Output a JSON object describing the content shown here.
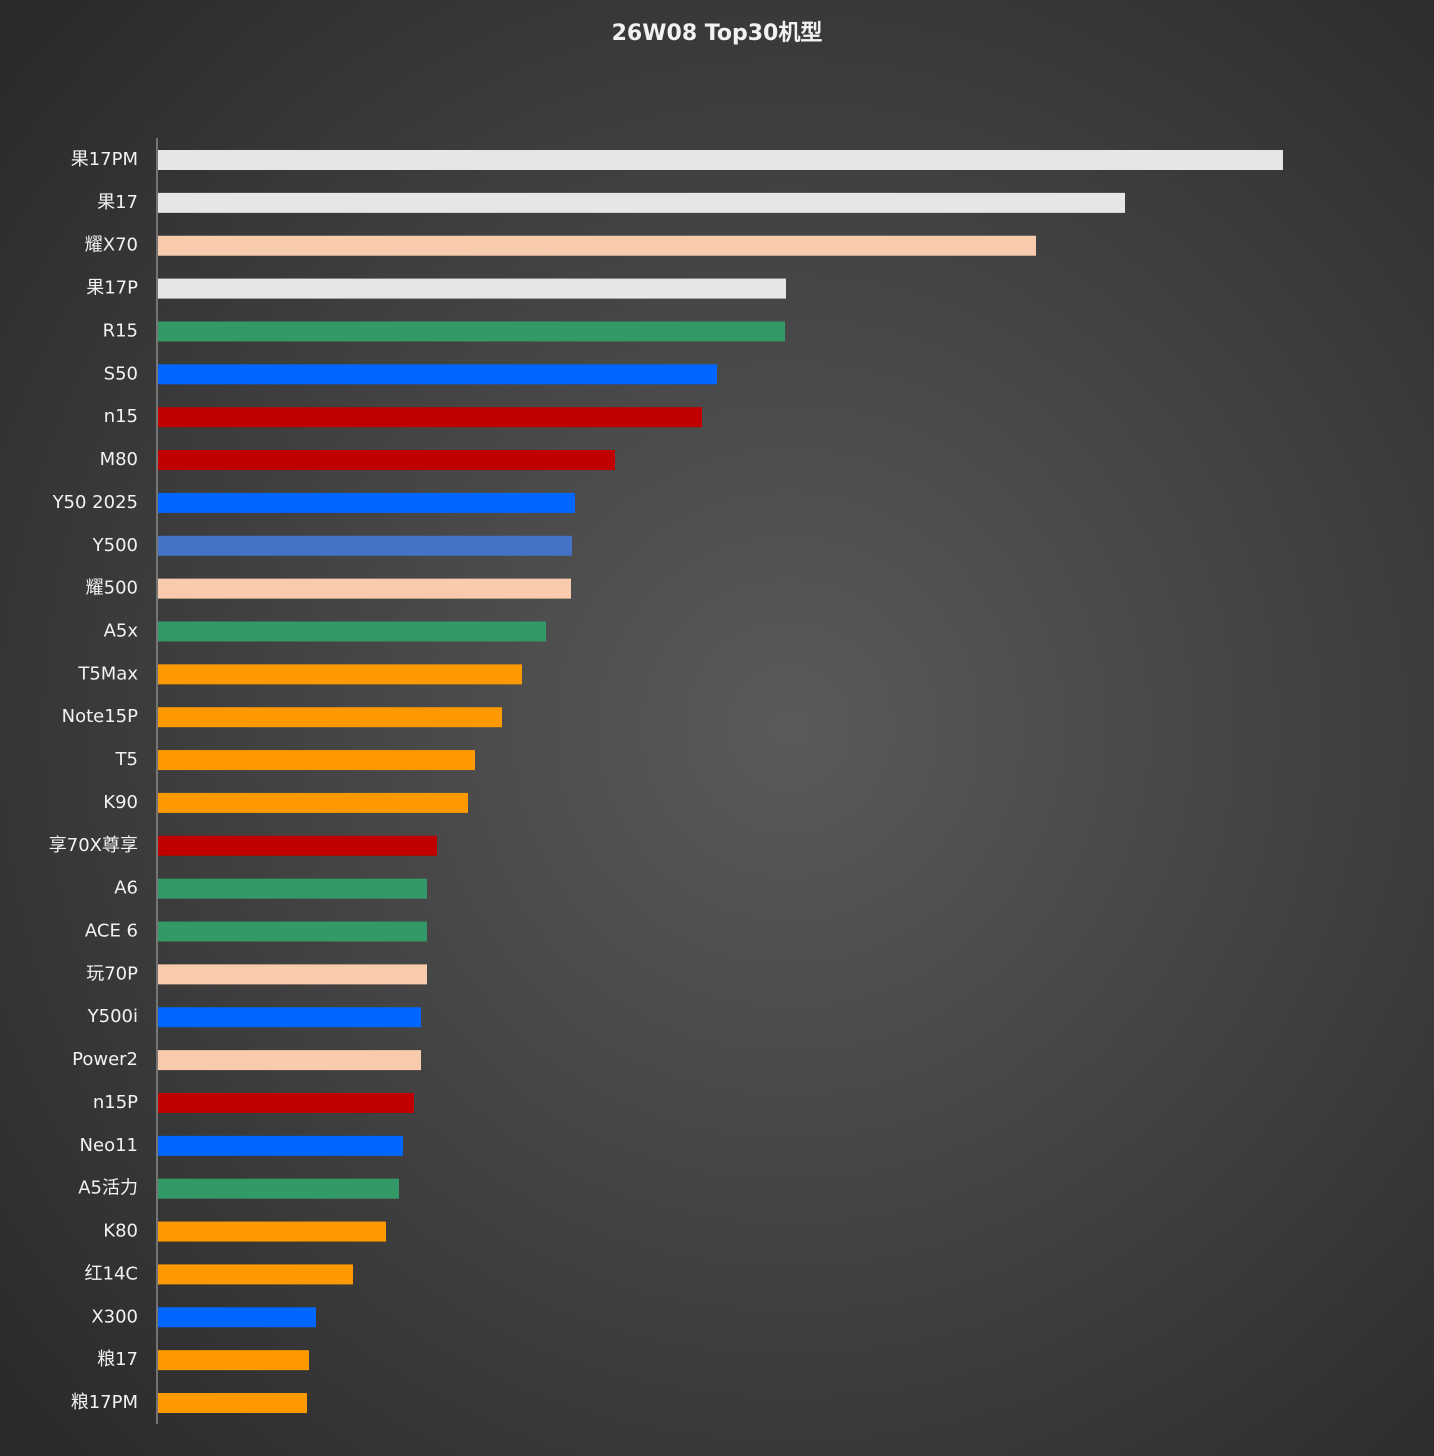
{
  "chart_data": {
    "type": "barh",
    "title": "26W08 Top30机型",
    "categories": [
      "果17PM",
      "果17",
      "耀X70",
      "果17P",
      "R15",
      "S50",
      "n15",
      "M80",
      "Y50 2025",
      "Y500",
      "耀500",
      "A5x",
      "T5Max",
      "Note15P",
      "T5",
      "K90",
      "享70X尊享",
      "A6",
      "ACE 6",
      "玩70P",
      "Y500i",
      "Power2",
      "n15P",
      "Neo11",
      "A5活力",
      "K80",
      "红14C",
      "X300",
      "粮17",
      "粮17PM"
    ],
    "values": [
      1125,
      967,
      878,
      628,
      627,
      559,
      544,
      457,
      417,
      414,
      413,
      388,
      364,
      344,
      317,
      310,
      279,
      269,
      269,
      269,
      263,
      263,
      256,
      245,
      241,
      228,
      195,
      158,
      151,
      149
    ],
    "colors": [
      "#e6e6e6",
      "#e6e6e6",
      "#f8cbad",
      "#e6e6e6",
      "#339966",
      "#0066ff",
      "#c00000",
      "#c00000",
      "#0066ff",
      "#4472c4",
      "#f8cbad",
      "#339966",
      "#ff9900",
      "#ff9900",
      "#ff9900",
      "#ff9900",
      "#c00000",
      "#339966",
      "#339966",
      "#f8cbad",
      "#0066ff",
      "#f8cbad",
      "#c00000",
      "#0066ff",
      "#339966",
      "#ff9900",
      "#ff9900",
      "#0066ff",
      "#ff9900",
      "#ff9900"
    ],
    "xlim": [
      0,
      1200
    ]
  }
}
